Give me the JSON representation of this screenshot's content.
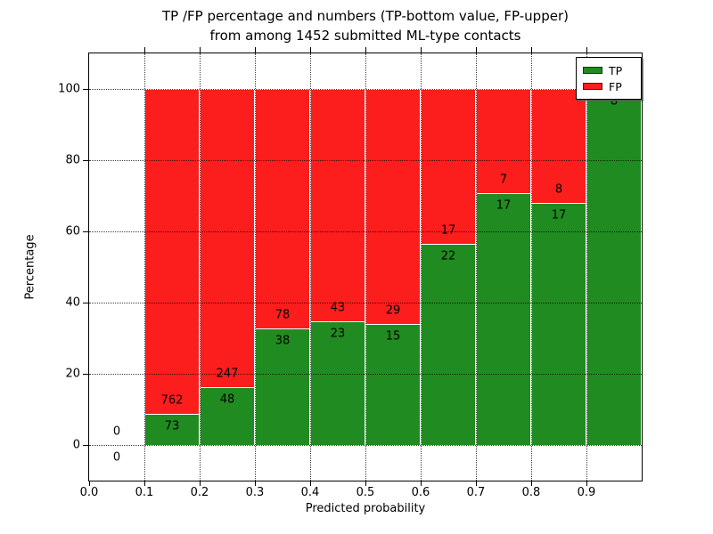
{
  "title": {
    "line1": "TP /FP percentage and numbers (TP-bottom value, FP-upper)",
    "line2": "from among 1452 submitted ML-type contacts"
  },
  "axes": {
    "xlabel": "Predicted probability",
    "ylabel": "Percentage",
    "x_tick_labels": [
      "0.0",
      "0.1",
      "0.2",
      "0.3",
      "0.4",
      "0.5",
      "0.6",
      "0.7",
      "0.8",
      "0.9"
    ],
    "x_tick_values": [
      0.0,
      0.1,
      0.2,
      0.3,
      0.4,
      0.5,
      0.6,
      0.7,
      0.8,
      0.9
    ],
    "y_tick_labels": [
      "0",
      "20",
      "40",
      "60",
      "80",
      "100"
    ],
    "y_tick_values": [
      0,
      20,
      40,
      60,
      80,
      100
    ],
    "xlim": [
      0.0,
      1.0
    ],
    "ylim": [
      -10,
      110
    ],
    "grid": "dotted, drawn over bars"
  },
  "legend": {
    "position": "upper right",
    "entries": [
      {
        "label": "TP",
        "color": "#208b20"
      },
      {
        "label": "FP",
        "color": "#fc1d1d"
      }
    ]
  },
  "chart_data": {
    "type": "bar",
    "stacked": true,
    "normalized_to": 100,
    "title": "TP /FP percentage and numbers (TP-bottom value, FP-upper) from among 1452 submitted ML-type contacts",
    "xlabel": "Predicted probability",
    "ylabel": "Percentage",
    "total_contacts": 1452,
    "bin_width": 0.1,
    "bin_starts": [
      0.0,
      0.1,
      0.2,
      0.3,
      0.4,
      0.5,
      0.6,
      0.7,
      0.8,
      0.9
    ],
    "series": [
      {
        "name": "TP",
        "color": "#208b20",
        "counts": [
          0,
          73,
          48,
          38,
          23,
          15,
          22,
          17,
          17,
          8
        ]
      },
      {
        "name": "FP",
        "color": "#fc1d1d",
        "counts": [
          0,
          762,
          247,
          78,
          43,
          29,
          17,
          7,
          8,
          0
        ]
      }
    ],
    "tp_percent_of_bin": [
      0,
      8.74,
      16.27,
      32.76,
      34.85,
      34.09,
      56.41,
      70.83,
      68.0,
      100.0
    ],
    "bar_edge_color": "#ffffff"
  },
  "colors": {
    "tp": "#208b20",
    "fp": "#fc1d1d",
    "grid": "#000000",
    "background": "#ffffff",
    "text": "#000000"
  }
}
